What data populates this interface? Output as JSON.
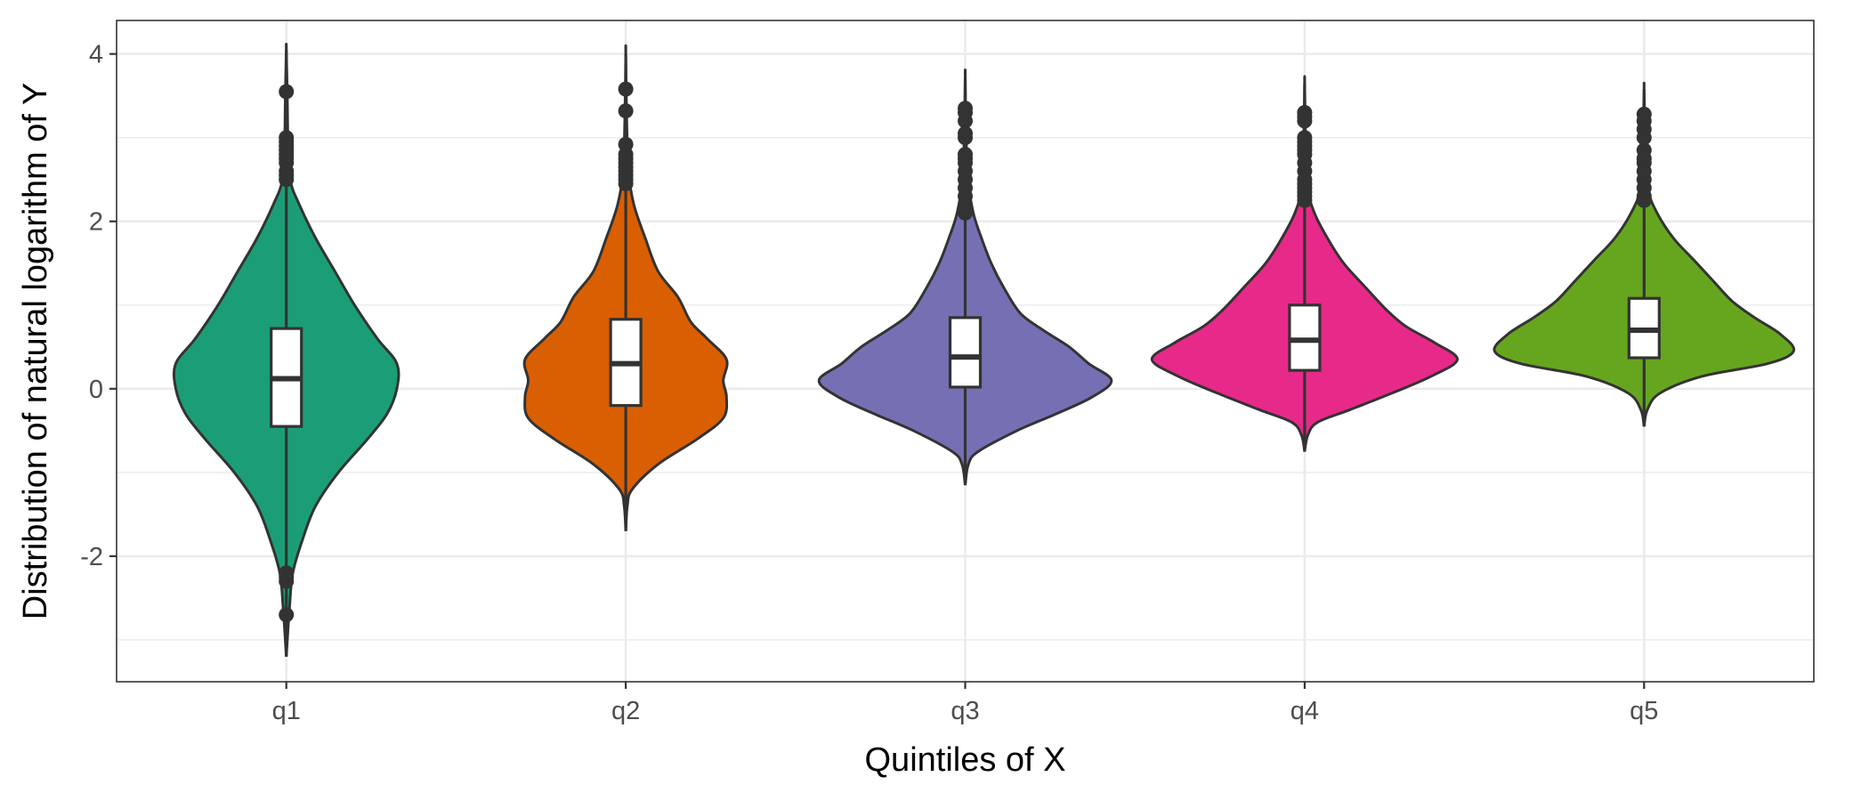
{
  "chart_data": {
    "type": "violin",
    "xlabel": "Quintiles of X",
    "ylabel": "Distribution of natural logarithm of Y",
    "categories": [
      "q1",
      "q2",
      "q3",
      "q4",
      "q5"
    ],
    "ylim": [
      -3.5,
      4.4
    ],
    "y_ticks": [
      -2,
      0,
      2,
      4
    ],
    "y_tick_labels": [
      "-2",
      "0",
      "2",
      "4"
    ],
    "grid": true,
    "legend": "none",
    "colors": [
      "#1b9e77",
      "#d95f02",
      "#7570b3",
      "#e7298a",
      "#66a61e"
    ],
    "series": [
      {
        "category": "q1",
        "color": "#1b9e77",
        "whisker_low": -3.2,
        "q1": -0.45,
        "median": 0.12,
        "q3": 0.72,
        "whisker_high": 4.05,
        "violin_min": -3.2,
        "violin_max": 4.05,
        "density": [
          [
            -3.2,
            0.0
          ],
          [
            -2.6,
            0.01
          ],
          [
            -2.2,
            0.02
          ],
          [
            -1.8,
            0.05
          ],
          [
            -1.4,
            0.09
          ],
          [
            -1.0,
            0.16
          ],
          [
            -0.6,
            0.25
          ],
          [
            -0.3,
            0.31
          ],
          [
            0.0,
            0.34
          ],
          [
            0.3,
            0.34
          ],
          [
            0.6,
            0.28
          ],
          [
            1.0,
            0.21
          ],
          [
            1.4,
            0.15
          ],
          [
            1.8,
            0.09
          ],
          [
            2.2,
            0.04
          ],
          [
            2.5,
            0.012
          ],
          [
            3.0,
            0.005
          ],
          [
            3.5,
            0.003
          ],
          [
            4.05,
            0.0
          ]
        ],
        "outliers": [
          3.55,
          3.0,
          2.95,
          2.9,
          2.85,
          2.8,
          2.75,
          2.7,
          2.6,
          2.55,
          2.5,
          -2.2,
          -2.25,
          -2.3,
          -2.7
        ]
      },
      {
        "category": "q2",
        "color": "#d95f02",
        "whisker_low": -1.7,
        "q1": -0.2,
        "median": 0.3,
        "q3": 0.83,
        "whisker_high": 4.0,
        "violin_min": -1.7,
        "violin_max": 4.0,
        "density": [
          [
            -1.7,
            0.0
          ],
          [
            -1.4,
            0.005
          ],
          [
            -1.2,
            0.02
          ],
          [
            -0.9,
            0.1
          ],
          [
            -0.6,
            0.22
          ],
          [
            -0.35,
            0.3
          ],
          [
            -0.1,
            0.31
          ],
          [
            0.1,
            0.3
          ],
          [
            0.35,
            0.31
          ],
          [
            0.6,
            0.25
          ],
          [
            0.8,
            0.2
          ],
          [
            1.1,
            0.16
          ],
          [
            1.4,
            0.1
          ],
          [
            1.8,
            0.06
          ],
          [
            2.2,
            0.025
          ],
          [
            2.6,
            0.008
          ],
          [
            3.2,
            0.003
          ],
          [
            4.0,
            0.0
          ]
        ],
        "outliers": [
          3.58,
          3.32,
          2.92,
          2.8,
          2.75,
          2.7,
          2.65,
          2.6,
          2.55,
          2.5,
          2.45
        ]
      },
      {
        "category": "q3",
        "color": "#7570b3",
        "whisker_low": -1.15,
        "q1": 0.02,
        "median": 0.38,
        "q3": 0.85,
        "whisker_high": 3.72,
        "violin_min": -1.15,
        "violin_max": 3.72,
        "density": [
          [
            -1.15,
            0.0
          ],
          [
            -0.9,
            0.01
          ],
          [
            -0.75,
            0.04
          ],
          [
            -0.5,
            0.16
          ],
          [
            -0.3,
            0.28
          ],
          [
            -0.1,
            0.39
          ],
          [
            0.1,
            0.45
          ],
          [
            0.3,
            0.38
          ],
          [
            0.5,
            0.32
          ],
          [
            0.7,
            0.24
          ],
          [
            0.9,
            0.17
          ],
          [
            1.2,
            0.12
          ],
          [
            1.5,
            0.08
          ],
          [
            1.8,
            0.05
          ],
          [
            2.1,
            0.025
          ],
          [
            2.5,
            0.008
          ],
          [
            3.0,
            0.003
          ],
          [
            3.72,
            0.0
          ]
        ],
        "outliers": [
          3.35,
          3.3,
          3.2,
          3.05,
          3.0,
          2.8,
          2.75,
          2.7,
          2.6,
          2.5,
          2.4,
          2.3,
          2.2,
          2.15,
          2.1
        ]
      },
      {
        "category": "q4",
        "color": "#e7298a",
        "whisker_low": -0.75,
        "q1": 0.22,
        "median": 0.58,
        "q3": 1.0,
        "whisker_high": 3.65,
        "violin_min": -0.75,
        "violin_max": 3.65,
        "density": [
          [
            -0.75,
            0.0
          ],
          [
            -0.55,
            0.01
          ],
          [
            -0.4,
            0.04
          ],
          [
            -0.25,
            0.14
          ],
          [
            -0.05,
            0.27
          ],
          [
            0.15,
            0.39
          ],
          [
            0.35,
            0.47
          ],
          [
            0.55,
            0.4
          ],
          [
            0.75,
            0.31
          ],
          [
            0.95,
            0.25
          ],
          [
            1.2,
            0.19
          ],
          [
            1.5,
            0.12
          ],
          [
            1.8,
            0.07
          ],
          [
            2.1,
            0.03
          ],
          [
            2.4,
            0.01
          ],
          [
            3.0,
            0.003
          ],
          [
            3.65,
            0.0
          ]
        ],
        "outliers": [
          3.3,
          3.25,
          3.2,
          3.0,
          2.95,
          2.9,
          2.85,
          2.8,
          2.7,
          2.6,
          2.5,
          2.45,
          2.4,
          2.35,
          2.3,
          2.25
        ]
      },
      {
        "category": "q5",
        "color": "#66a61e",
        "whisker_low": -0.45,
        "q1": 0.37,
        "median": 0.7,
        "q3": 1.08,
        "whisker_high": 3.58,
        "violin_min": -0.45,
        "violin_max": 3.58,
        "density": [
          [
            -0.45,
            0.0
          ],
          [
            -0.25,
            0.01
          ],
          [
            -0.05,
            0.05
          ],
          [
            0.15,
            0.18
          ],
          [
            0.3,
            0.38
          ],
          [
            0.45,
            0.46
          ],
          [
            0.65,
            0.42
          ],
          [
            0.85,
            0.34
          ],
          [
            1.05,
            0.27
          ],
          [
            1.3,
            0.21
          ],
          [
            1.55,
            0.15
          ],
          [
            1.8,
            0.09
          ],
          [
            2.1,
            0.04
          ],
          [
            2.4,
            0.012
          ],
          [
            3.0,
            0.004
          ],
          [
            3.58,
            0.0
          ]
        ],
        "outliers": [
          3.28,
          3.2,
          3.1,
          3.0,
          2.85,
          2.75,
          2.7,
          2.6,
          2.5,
          2.4,
          2.3,
          2.25
        ]
      }
    ]
  }
}
